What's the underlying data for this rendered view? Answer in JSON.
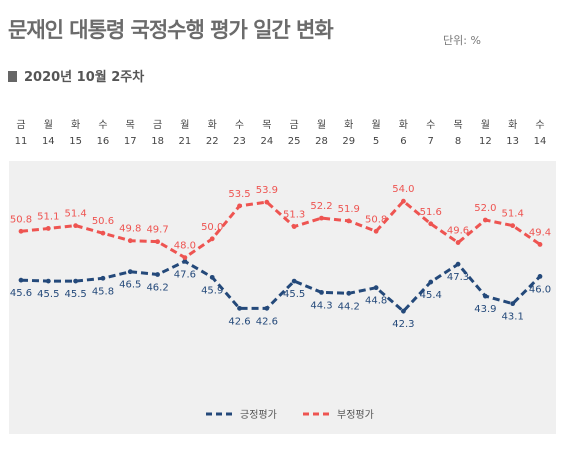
{
  "header": {
    "title": "문재인 대통령 국정수행 평가 일간 변화",
    "unit": "단위: %",
    "subtitle": "2020년 10월 2주차"
  },
  "colors": {
    "approve": "#24497a",
    "disapprove": "#ee5451",
    "plot_bg": "#f0f0f0"
  },
  "chart_data": {
    "type": "line",
    "days": [
      "금",
      "월",
      "화",
      "수",
      "목",
      "금",
      "월",
      "화",
      "수",
      "목",
      "금",
      "월",
      "화",
      "월",
      "화",
      "수",
      "목",
      "월",
      "화",
      "수"
    ],
    "dates": [
      "11",
      "14",
      "15",
      "16",
      "17",
      "18",
      "21",
      "22",
      "23",
      "24",
      "25",
      "28",
      "29",
      "5",
      "6",
      "7",
      "8",
      "12",
      "13",
      "14"
    ],
    "series": [
      {
        "name": "긍정평가",
        "color": "#24497a",
        "values": [
          45.6,
          45.5,
          45.5,
          45.8,
          46.5,
          46.2,
          47.6,
          45.9,
          42.6,
          42.6,
          45.5,
          44.3,
          44.2,
          44.8,
          42.3,
          45.4,
          47.3,
          43.9,
          43.1,
          46.0
        ],
        "labels": [
          "45.6",
          "45.5",
          "45.5",
          "45.8",
          "46.5",
          "46.2",
          "47.6",
          "45.9",
          "42.6",
          "42.6",
          "45.5",
          "44.3",
          "44.2",
          "44.8",
          "42.3",
          "45.4",
          "47.3",
          "43.9",
          "43.1",
          "46.0"
        ]
      },
      {
        "name": "부정평가",
        "color": "#ee5451",
        "values": [
          50.8,
          51.1,
          51.4,
          50.6,
          49.8,
          49.7,
          48.0,
          50.0,
          53.5,
          53.9,
          51.3,
          52.2,
          51.9,
          50.8,
          54.0,
          51.6,
          49.6,
          52.0,
          51.4,
          49.4
        ],
        "labels": [
          "50.8",
          "51.1",
          "51.4",
          "50.6",
          "49.8",
          "49.7",
          "48.0",
          "50.0",
          "53.5",
          "53.9",
          "51.3",
          "52.2",
          "51.9",
          "50.8",
          "54.0",
          "51.6",
          "49.6",
          "52.0",
          "51.4",
          "49.4"
        ]
      }
    ],
    "legend_position": "bottom"
  }
}
